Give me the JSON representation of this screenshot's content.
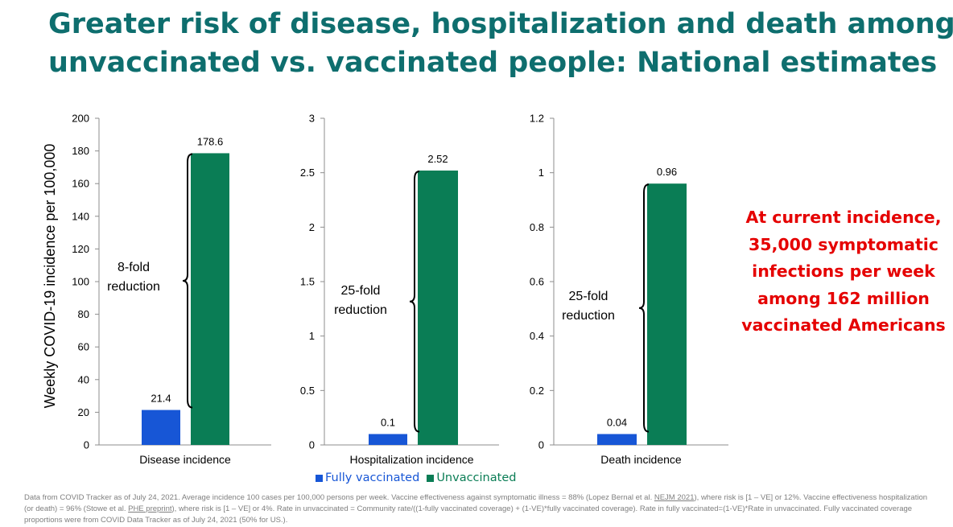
{
  "title": {
    "line1": "Greater risk of disease, hospitalization and death among",
    "line2": "unvaccinated vs. vaccinated people: National estimates"
  },
  "colors": {
    "title": "#0e6e6e",
    "fully_vaccinated": "#1756d6",
    "unvaccinated": "#0a7d55",
    "callout": "#e50000"
  },
  "ylabel": "Weekly COVID-19 incidence per 100,000",
  "chart_data": [
    {
      "type": "bar",
      "categories": [
        "Disease incidence"
      ],
      "series": [
        {
          "name": "Fully vaccinated",
          "values": [
            21.4
          ]
        },
        {
          "name": "Unvaccinated",
          "values": [
            178.6
          ]
        }
      ],
      "data_labels": [
        "21.4",
        "178.6"
      ],
      "ylim": [
        0,
        200
      ],
      "yticks": [
        "0",
        "20",
        "40",
        "60",
        "80",
        "100",
        "120",
        "140",
        "160",
        "180",
        "200"
      ],
      "ylabel": "Weekly COVID-19 incidence per 100,000",
      "annotation": [
        "8-fold",
        "reduction"
      ]
    },
    {
      "type": "bar",
      "categories": [
        "Hospitalization incidence"
      ],
      "series": [
        {
          "name": "Fully vaccinated",
          "values": [
            0.1
          ]
        },
        {
          "name": "Unvaccinated",
          "values": [
            2.52
          ]
        }
      ],
      "data_labels": [
        "0.1",
        "2.52"
      ],
      "ylim": [
        0,
        3
      ],
      "yticks": [
        "0",
        "0.5",
        "1",
        "1.5",
        "2",
        "2.5",
        "3"
      ],
      "annotation": [
        "25-fold",
        "reduction"
      ]
    },
    {
      "type": "bar",
      "categories": [
        "Death incidence"
      ],
      "series": [
        {
          "name": "Fully vaccinated",
          "values": [
            0.04
          ]
        },
        {
          "name": "Unvaccinated",
          "values": [
            0.96
          ]
        }
      ],
      "data_labels": [
        "0.04",
        "0.96"
      ],
      "ylim": [
        0,
        1.2
      ],
      "yticks": [
        "0",
        "0.2",
        "0.4",
        "0.6",
        "0.8",
        "1",
        "1.2"
      ],
      "annotation": [
        "25-fold",
        "reduction"
      ]
    }
  ],
  "legend": [
    "Fully vaccinated",
    "Unvaccinated"
  ],
  "callout": [
    "At current incidence,",
    "35,000 symptomatic",
    "infections per week",
    "among 162 million",
    "vaccinated Americans"
  ],
  "footnote": {
    "p1": "Data from COVID Tracker as of July 24, 2021. Average incidence 100 cases per 100,000 persons per week. Vaccine effectiveness against symptomatic illness = 88% (Lopez Bernal et al. ",
    "link1": "NEJM 2021",
    "p2": "), where risk is [1 – VE] or 12%. Vaccine effectiveness hospitalization (or death) = 96% (Stowe et al. ",
    "link2": "PHE preprint",
    "p3": "), where risk is [1 – VE] or 4%.  Rate in unvaccinated = Community rate/((1-fully vaccinated coverage) + (1-VE)*fully vaccinated coverage). Rate in fully vaccinated=(1-VE)*Rate in unvaccinated. Fully vaccinated coverage proportions were from COVID Data Tracker as of July 24, 2021 (50% for US.)."
  }
}
